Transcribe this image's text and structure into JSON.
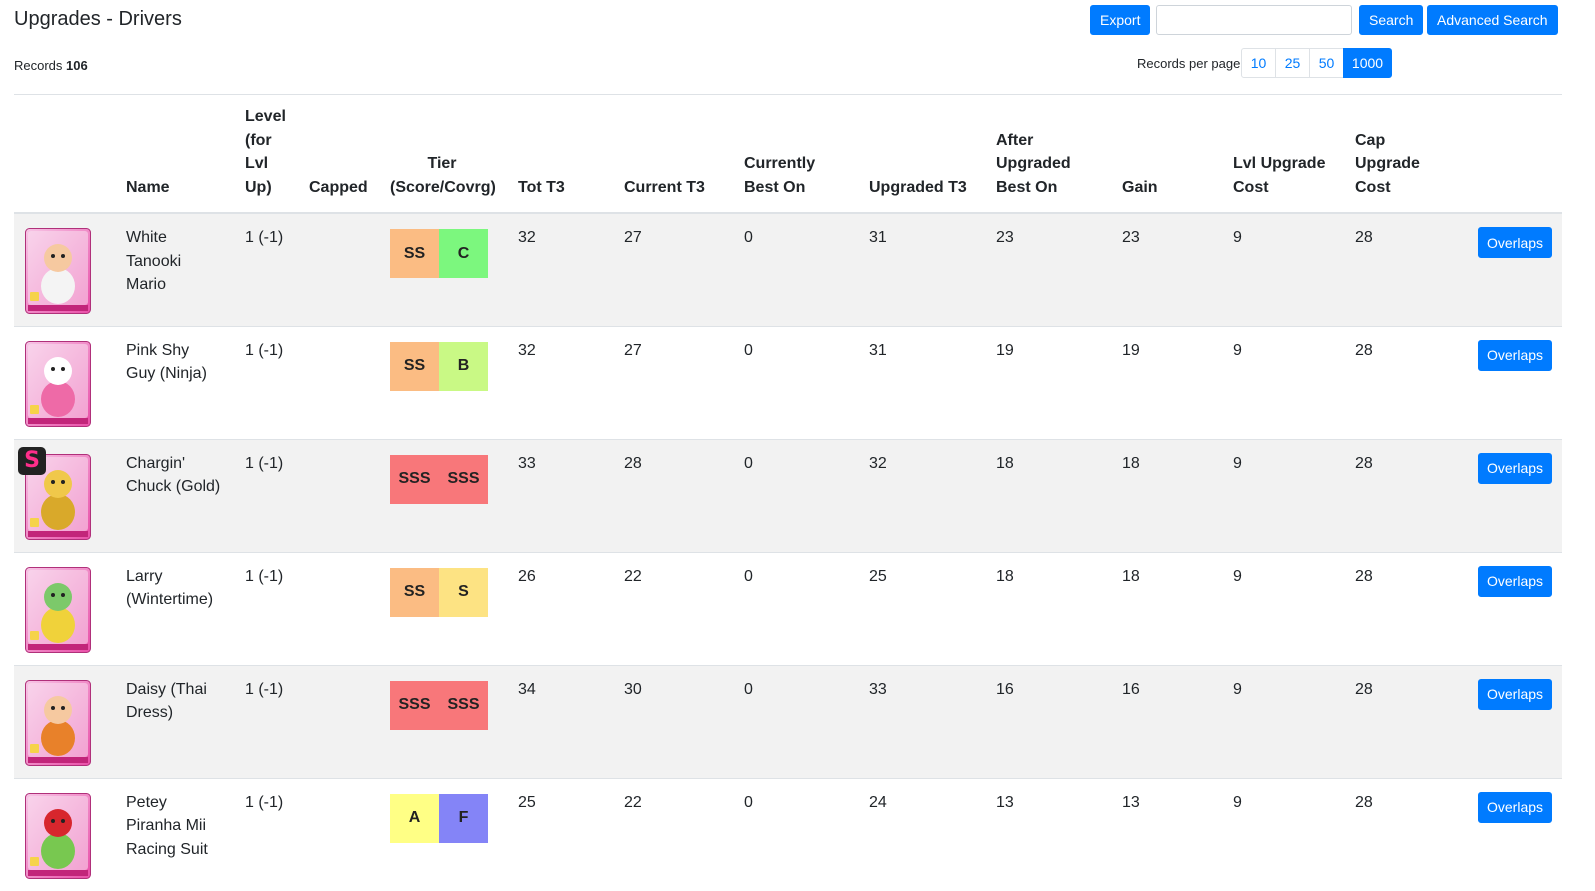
{
  "header": {
    "title": "Upgrades - Drivers",
    "records_label": "Records",
    "records_count": "106",
    "export_label": "Export",
    "search_value": "",
    "search_placeholder": "",
    "search_label": "Search",
    "advanced_search_label": "Advanced Search",
    "records_per_page_label": "Records per page",
    "page_sizes": [
      "10",
      "25",
      "50",
      "1000"
    ],
    "active_page_size": "1000"
  },
  "columns": [
    "",
    "Name",
    "Level (for Lvl Up)",
    "Capped",
    "Tier (Score/Covrg)",
    "Tot T3",
    "Current T3",
    "Currently Best On",
    "Upgraded T3",
    "After Upgraded Best On",
    "Gain",
    "Lvl Upgrade Cost",
    "Cap Upgrade Cost",
    ""
  ],
  "tier_colors": {
    "SSS": "#f8777a",
    "SS": "#fbbc83",
    "S": "#fde383",
    "A": "#ffff85",
    "B": "#c9f985",
    "C": "#7cf77e",
    "F": "#8484f7"
  },
  "rows": [
    {
      "portrait_icon": "white-tanooki-mario-portrait",
      "badge": "",
      "name": "White Tanooki Mario",
      "level": "1 (-1)",
      "capped": "",
      "tier_score": "SS",
      "tier_coverage": "C",
      "tot_t3": "32",
      "current_t3": "27",
      "currently_best_on": "0",
      "upgraded_t3": "31",
      "after_upgraded_best_on": "23",
      "gain": "23",
      "lvl_upgrade_cost": "9",
      "cap_upgrade_cost": "28",
      "action_label": "Overlaps"
    },
    {
      "portrait_icon": "pink-shy-guy-ninja-portrait",
      "badge": "",
      "name": "Pink Shy Guy (Ninja)",
      "level": "1 (-1)",
      "capped": "",
      "tier_score": "SS",
      "tier_coverage": "B",
      "tot_t3": "32",
      "current_t3": "27",
      "currently_best_on": "0",
      "upgraded_t3": "31",
      "after_upgraded_best_on": "19",
      "gain": "19",
      "lvl_upgrade_cost": "9",
      "cap_upgrade_cost": "28",
      "action_label": "Overlaps"
    },
    {
      "portrait_icon": "chargin-chuck-gold-portrait",
      "badge": "S",
      "name": "Chargin' Chuck (Gold)",
      "level": "1 (-1)",
      "capped": "",
      "tier_score": "SSS",
      "tier_coverage": "SSS",
      "tot_t3": "33",
      "current_t3": "28",
      "currently_best_on": "0",
      "upgraded_t3": "32",
      "after_upgraded_best_on": "18",
      "gain": "18",
      "lvl_upgrade_cost": "9",
      "cap_upgrade_cost": "28",
      "action_label": "Overlaps"
    },
    {
      "portrait_icon": "larry-wintertime-portrait",
      "badge": "",
      "name": "Larry (Wintertime)",
      "level": "1 (-1)",
      "capped": "",
      "tier_score": "SS",
      "tier_coverage": "S",
      "tot_t3": "26",
      "current_t3": "22",
      "currently_best_on": "0",
      "upgraded_t3": "25",
      "after_upgraded_best_on": "18",
      "gain": "18",
      "lvl_upgrade_cost": "9",
      "cap_upgrade_cost": "28",
      "action_label": "Overlaps"
    },
    {
      "portrait_icon": "daisy-thai-dress-portrait",
      "badge": "",
      "name": "Daisy (Thai Dress)",
      "level": "1 (-1)",
      "capped": "",
      "tier_score": "SSS",
      "tier_coverage": "SSS",
      "tot_t3": "34",
      "current_t3": "30",
      "currently_best_on": "0",
      "upgraded_t3": "33",
      "after_upgraded_best_on": "16",
      "gain": "16",
      "lvl_upgrade_cost": "9",
      "cap_upgrade_cost": "28",
      "action_label": "Overlaps"
    },
    {
      "portrait_icon": "petey-piranha-mii-racing-suit-portrait",
      "badge": "",
      "name": "Petey Piranha Mii Racing Suit",
      "level": "1 (-1)",
      "capped": "",
      "tier_score": "A",
      "tier_coverage": "F",
      "tot_t3": "25",
      "current_t3": "22",
      "currently_best_on": "0",
      "upgraded_t3": "24",
      "after_upgraded_best_on": "13",
      "gain": "13",
      "lvl_upgrade_cost": "9",
      "cap_upgrade_cost": "28",
      "action_label": "Overlaps"
    }
  ]
}
